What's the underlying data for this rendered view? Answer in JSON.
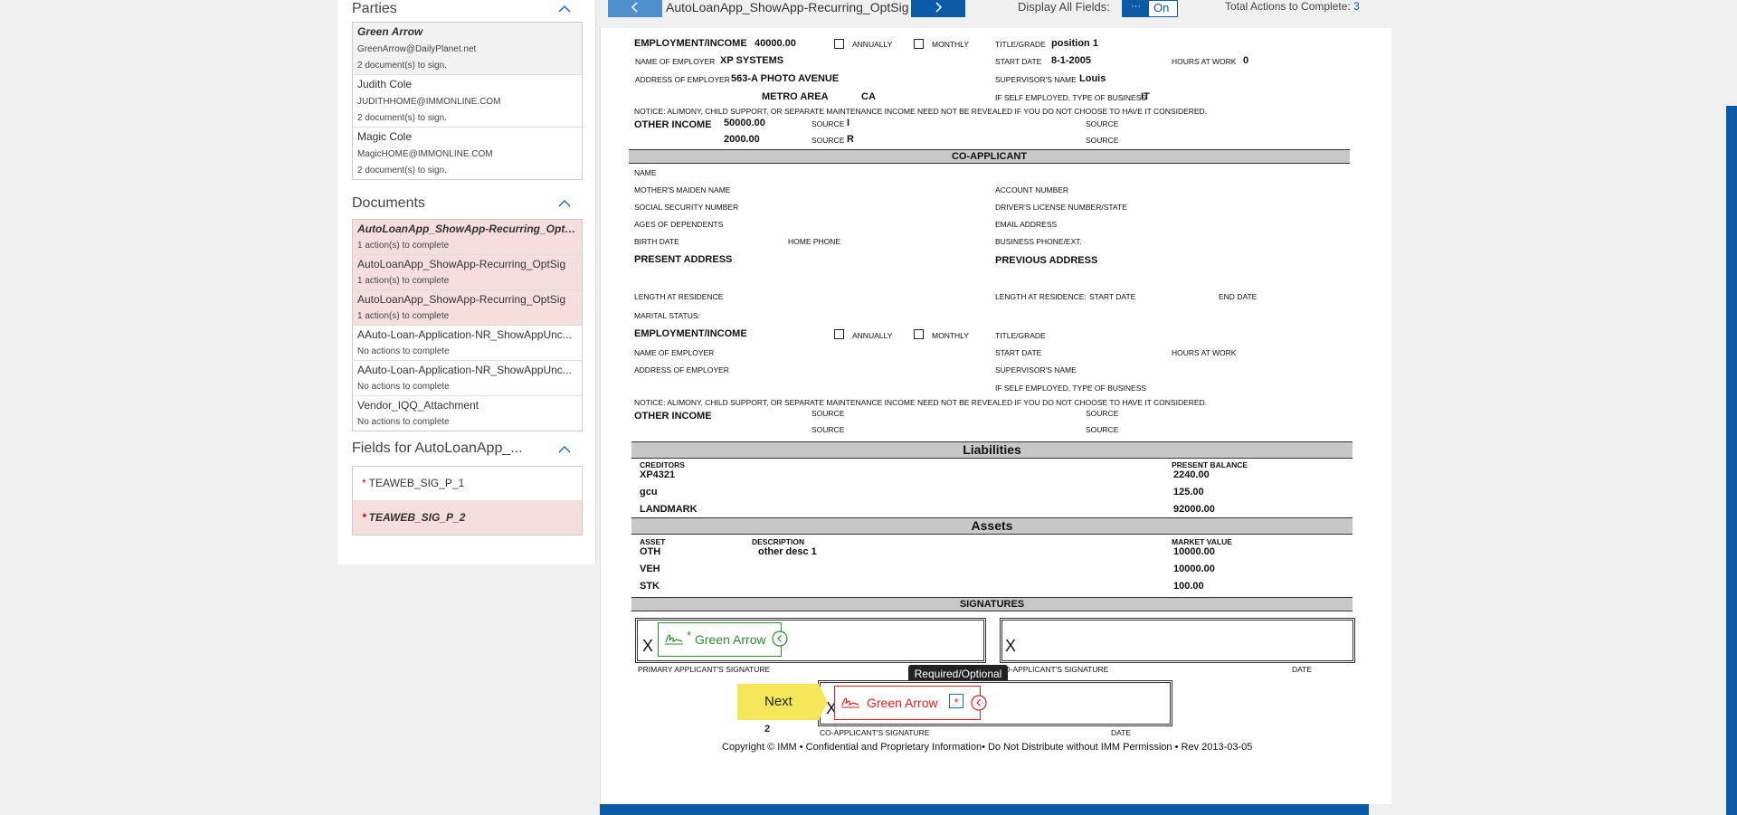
{
  "sidebar": {
    "parties": {
      "title": "Parties",
      "items": [
        {
          "name": "Green Arrow",
          "email": "GreenArrow@DailyPlanet.net",
          "status": "2 document(s) to sign."
        },
        {
          "name": "Judith Cole",
          "email": "JUDITHHOME@IMMONLINE.COM",
          "status": "2 document(s) to sign."
        },
        {
          "name": "Magic Cole",
          "email": "MagicHOME@IMMONLINE.COM",
          "status": "2 document(s) to sign."
        }
      ]
    },
    "documents": {
      "title": "Documents",
      "items": [
        {
          "name": "AutoLoanApp_ShowApp-Recurring_OptSig",
          "status": "1 action(s) to complete"
        },
        {
          "name": "AutoLoanApp_ShowApp-Recurring_OptSig",
          "status": "1 action(s) to complete"
        },
        {
          "name": "AutoLoanApp_ShowApp-Recurring_OptSig",
          "status": "1 action(s) to complete"
        },
        {
          "name": "AAuto-Loan-Application-NR_ShowAppUnc...",
          "status": "No actions to complete"
        },
        {
          "name": "AAuto-Loan-Application-NR_ShowAppUnc...",
          "status": "No actions to complete"
        },
        {
          "name": "Vendor_IQQ_Attachment",
          "status": "No actions to complete"
        }
      ]
    },
    "fields": {
      "title": "Fields for AutoLoanApp_...",
      "items": [
        {
          "marker": "*",
          "label": "TEAWEB_SIG_P_1"
        },
        {
          "marker": "*",
          "label": "TEAWEB_SIG_P_2"
        }
      ]
    }
  },
  "topbar": {
    "doc_title": "AutoLoanApp_ShowApp-Recurring_OptSig",
    "display_all_label": "Display All Fields:",
    "toggle_off": "···",
    "toggle_on": "On",
    "total_actions_label": "Total Actions to Complete:",
    "total_actions_value": "3"
  },
  "colors": {
    "accent": "#0a5aa8",
    "pink": "#f6dede",
    "green": "#2e8b2e",
    "red": "#e02020",
    "next_yellow": "#f5e65a"
  },
  "form": {
    "emp": {
      "header": "EMPLOYMENT/INCOME",
      "income": "40000.00",
      "annually": "ANNUALLY",
      "monthly": "MONTHLY",
      "title_label": "TITLE/GRADE",
      "title_value": "position 1",
      "employer_label": "NAME OF EMPLOYER",
      "employer_value": "XP SYSTEMS",
      "start_label": "START DATE",
      "start_value": "8-1-2005",
      "hours_label": "HOURS AT WORK",
      "hours_value": "0",
      "address_label": "ADDRESS OF EMPLOYER",
      "address_value": "563-A PHOTO AVENUE",
      "supervisor_label": "SUPERVISOR'S NAME",
      "supervisor_value": "Louis",
      "city_value": "METRO AREA",
      "state_value": "CA",
      "selfemp_label": "IF SELF EMPLOYED, TYPE OF BUSINESS",
      "selfemp_value": "IT"
    },
    "notice": "NOTICE: ALIMONY, CHILD SUPPORT, OR SEPARATE MAINTENANCE INCOME NEED NOT BE REVEALED IF YOU DO NOT CHOOSE TO HAVE IT CONSIDERED.",
    "other_income": {
      "header": "OTHER INCOME",
      "amount1": "50000.00",
      "amount2": "2000.00",
      "source_label": "SOURCE",
      "source1": "I",
      "source2": "R"
    },
    "coapp": {
      "header": "CO-APPLICANT",
      "name": "NAME",
      "maiden": "MOTHER'S MAIDEN NAME",
      "account": "ACCOUNT NUMBER",
      "ssn": "SOCIAL SECURITY NUMBER",
      "license": "DRIVER'S LICENSE NUMBER/STATE",
      "dependents": "AGES OF DEPENDENTS",
      "email": "EMAIL ADDRESS",
      "birth": "BIRTH DATE",
      "home_phone": "HOME PHONE",
      "business_phone": "BUSINESS PHONE/EXT.",
      "present_address": "PRESENT ADDRESS",
      "previous_address": "PREVIOUS ADDRESS",
      "length_res": "LENGTH AT RESIDENCE",
      "length_res_prev": "LENGTH AT RESIDENCE:",
      "start_date": "START DATE",
      "end_date": "END DATE",
      "marital": "MARITAL STATUS:"
    },
    "liabilities": {
      "header": "Liabilities",
      "col1": "CREDITORS",
      "col2": "PRESENT BALANCE",
      "rows": [
        {
          "name": "XP4321",
          "balance": "2240.00"
        },
        {
          "name": "gcu",
          "balance": "125.00"
        },
        {
          "name": "LANDMARK",
          "balance": "92000.00"
        }
      ]
    },
    "assets": {
      "header": "Assets",
      "col1": "ASSET",
      "col2": "DESCRIPTION",
      "col3": "MARKET VALUE",
      "rows": [
        {
          "asset": "OTH",
          "desc": "other desc 1",
          "value": "10000.00"
        },
        {
          "asset": "VEH",
          "desc": "",
          "value": "10000.00"
        },
        {
          "asset": "STK",
          "desc": "",
          "value": "100.00"
        }
      ]
    },
    "signatures": {
      "header": "SIGNATURES",
      "x": "X",
      "primary_label": "PRIMARY APPLICANT'S SIGNATURE",
      "co_label_partial": "O-APPLICANT'S SIGNATURE",
      "date_label": "DATE",
      "co_label": "CO-APPLICANT'S SIGNATURE",
      "sig1_marker": "*",
      "sig1_name": "Green Arrow",
      "sig2_name": "Green Arrow",
      "sig2_marker": "*"
    },
    "tooltip": "Required/Optional",
    "next_label": "Next",
    "next_count": "2",
    "copyright": "Copyright © IMM • Confidential and Proprietary Information• Do Not Distribute without IMM Permission • Rev 2013-03-05"
  }
}
